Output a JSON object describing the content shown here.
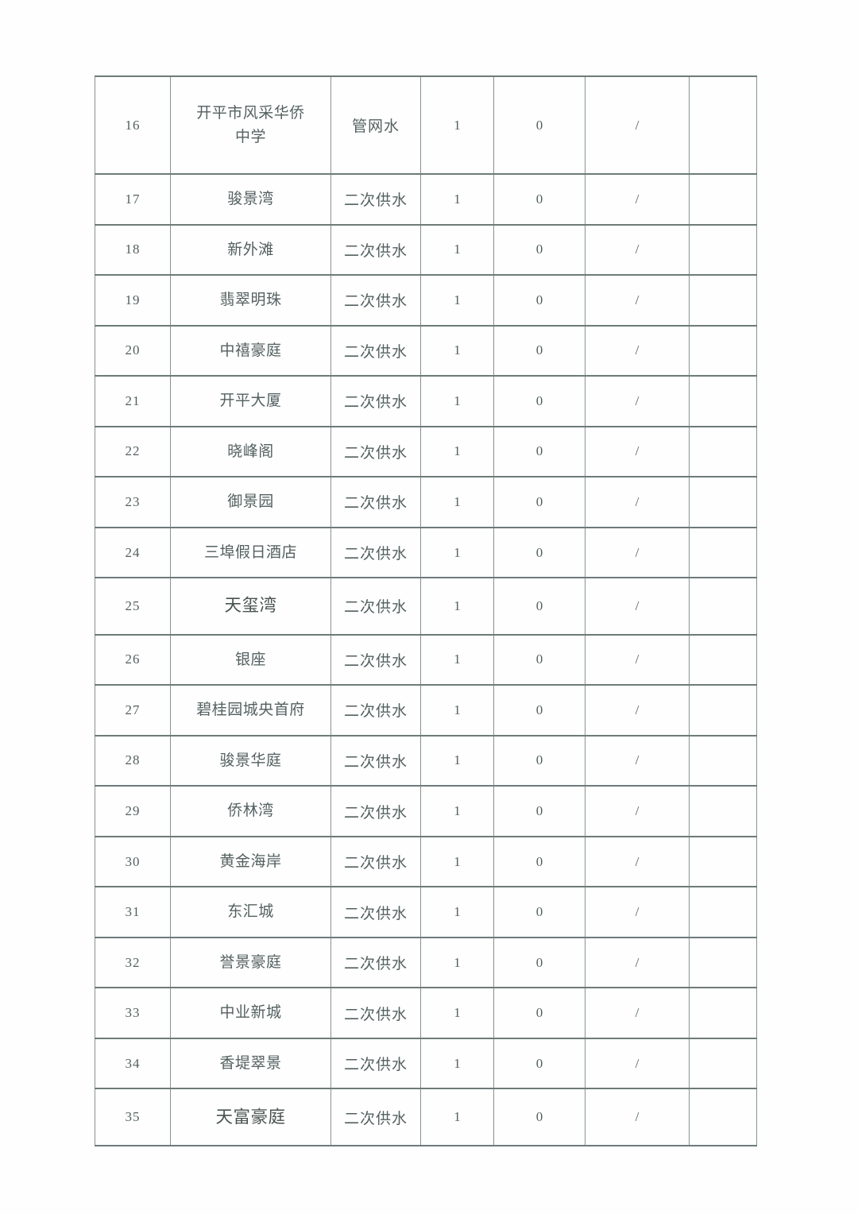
{
  "page": {
    "background_color": "#fefefe",
    "border_color_horizontal": "#6d7b79",
    "border_color_vertical": "#879391",
    "text_color": "#546060"
  },
  "table": {
    "rows": [
      {
        "index": "16",
        "name": "开平市风采华侨中学",
        "type": "管网水",
        "value1": "1",
        "value2": "0",
        "remark": "/"
      },
      {
        "index": "17",
        "name": "骏景湾",
        "type": "二次供水",
        "value1": "1",
        "value2": "0",
        "remark": "/"
      },
      {
        "index": "18",
        "name": "新外滩",
        "type": "二次供水",
        "value1": "1",
        "value2": "0",
        "remark": "/"
      },
      {
        "index": "19",
        "name": "翡翠明珠",
        "type": "二次供水",
        "value1": "1",
        "value2": "0",
        "remark": "/"
      },
      {
        "index": "20",
        "name": "中禧豪庭",
        "type": "二次供水",
        "value1": "1",
        "value2": "0",
        "remark": "/"
      },
      {
        "index": "21",
        "name": "开平大厦",
        "type": "二次供水",
        "value1": "1",
        "value2": "0",
        "remark": "/"
      },
      {
        "index": "22",
        "name": "晓峰阁",
        "type": "二次供水",
        "value1": "1",
        "value2": "0",
        "remark": "/"
      },
      {
        "index": "23",
        "name": "御景园",
        "type": "二次供水",
        "value1": "1",
        "value2": "0",
        "remark": "/"
      },
      {
        "index": "24",
        "name": "三埠假日酒店",
        "type": "二次供水",
        "value1": "1",
        "value2": "0",
        "remark": "/"
      },
      {
        "index": "25",
        "name": "天玺湾",
        "type": "二次供水",
        "value1": "1",
        "value2": "0",
        "remark": "/",
        "large": true
      },
      {
        "index": "26",
        "name": "银座",
        "type": "二次供水",
        "value1": "1",
        "value2": "0",
        "remark": "/"
      },
      {
        "index": "27",
        "name": "碧桂园城央首府",
        "type": "二次供水",
        "value1": "1",
        "value2": "0",
        "remark": "/"
      },
      {
        "index": "28",
        "name": "骏景华庭",
        "type": "二次供水",
        "value1": "1",
        "value2": "0",
        "remark": "/"
      },
      {
        "index": "29",
        "name": "侨林湾",
        "type": "二次供水",
        "value1": "1",
        "value2": "0",
        "remark": "/"
      },
      {
        "index": "30",
        "name": "黄金海岸",
        "type": "二次供水",
        "value1": "1",
        "value2": "0",
        "remark": "/"
      },
      {
        "index": "31",
        "name": "东汇城",
        "type": "二次供水",
        "value1": "1",
        "value2": "0",
        "remark": "/"
      },
      {
        "index": "32",
        "name": "誉景豪庭",
        "type": "二次供水",
        "value1": "1",
        "value2": "0",
        "remark": "/"
      },
      {
        "index": "33",
        "name": "中业新城",
        "type": "二次供水",
        "value1": "1",
        "value2": "0",
        "remark": "/"
      },
      {
        "index": "34",
        "name": "香堤翠景",
        "type": "二次供水",
        "value1": "1",
        "value2": "0",
        "remark": "/"
      },
      {
        "index": "35",
        "name": "天富豪庭",
        "type": "二次供水",
        "value1": "1",
        "value2": "0",
        "remark": "/",
        "large": true
      }
    ]
  }
}
